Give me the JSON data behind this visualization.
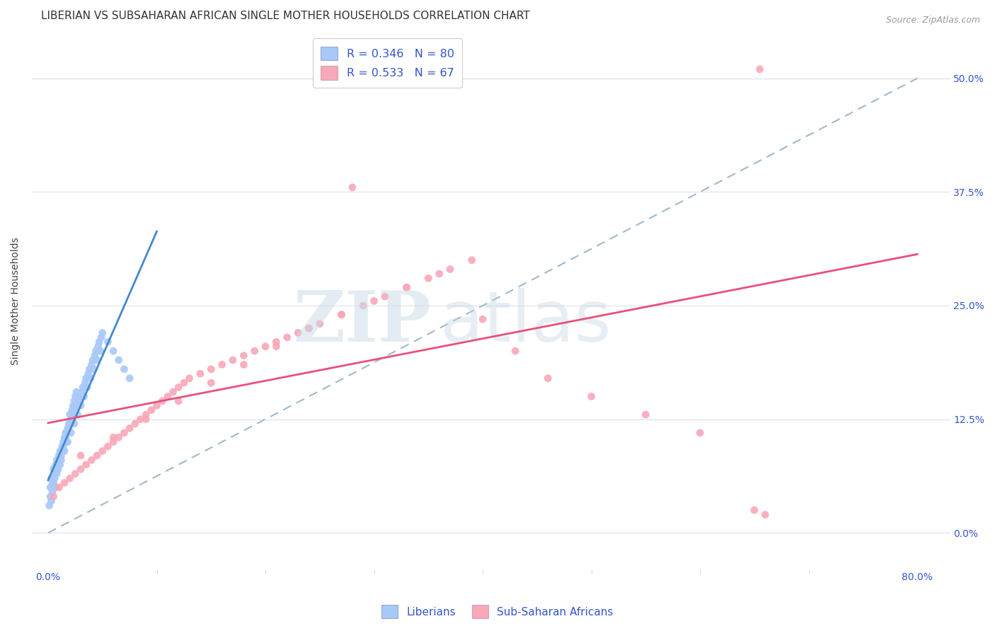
{
  "title": "LIBERIAN VS SUBSAHARAN AFRICAN SINGLE MOTHER HOUSEHOLDS CORRELATION CHART",
  "source": "Source: ZipAtlas.com",
  "ylabel": "Single Mother Households",
  "ytick_labels": [
    "0.0%",
    "12.5%",
    "25.0%",
    "37.5%",
    "50.0%"
  ],
  "ytick_values": [
    0.0,
    12.5,
    25.0,
    37.5,
    50.0
  ],
  "color_liberian": "#a8c8f8",
  "color_liberian_line": "#4488cc",
  "color_subsaharan": "#f8a8b8",
  "color_subsaharan_line": "#e8507a",
  "color_dashed": "#a0b8cc",
  "color_axis_labels": "#3355cc",
  "background_color": "#ffffff",
  "grid_color": "#e0e0ee",
  "title_fontsize": 11,
  "axis_label_fontsize": 10,
  "tick_label_color": "#3355cc",
  "tick_label_fontsize": 10,
  "lib_x": [
    0.2,
    0.3,
    0.4,
    0.5,
    0.6,
    0.7,
    0.8,
    0.9,
    1.0,
    1.1,
    1.2,
    1.3,
    1.4,
    1.5,
    1.6,
    1.7,
    1.8,
    1.9,
    2.0,
    2.1,
    2.2,
    2.3,
    2.4,
    2.5,
    2.6,
    2.7,
    2.8,
    2.9,
    3.0,
    3.1,
    3.2,
    3.3,
    3.4,
    3.5,
    3.6,
    3.7,
    3.8,
    3.9,
    4.0,
    4.1,
    4.2,
    4.3,
    4.4,
    4.5,
    4.6,
    4.7,
    4.8,
    4.9,
    5.0,
    5.5,
    6.0,
    6.5,
    7.0,
    7.5,
    0.1,
    0.2,
    0.3,
    0.4,
    0.5,
    0.6,
    0.7,
    0.8,
    0.9,
    1.0,
    1.1,
    1.2,
    1.3,
    1.4,
    1.5,
    1.6,
    1.7,
    1.8,
    1.9,
    2.0,
    2.1,
    2.2,
    2.3,
    2.4,
    2.5,
    2.6
  ],
  "lib_y": [
    5.0,
    6.0,
    5.5,
    7.0,
    6.5,
    7.5,
    8.0,
    7.0,
    8.5,
    9.0,
    8.0,
    9.5,
    10.0,
    9.0,
    10.5,
    11.0,
    10.0,
    11.5,
    12.0,
    11.0,
    12.5,
    13.0,
    12.0,
    13.5,
    14.0,
    13.0,
    14.5,
    15.0,
    14.0,
    15.5,
    16.0,
    15.0,
    16.5,
    17.0,
    16.0,
    17.5,
    18.0,
    17.0,
    18.5,
    19.0,
    18.0,
    19.5,
    20.0,
    19.0,
    20.5,
    21.0,
    20.0,
    21.5,
    22.0,
    21.0,
    20.0,
    19.0,
    18.0,
    17.0,
    3.0,
    4.0,
    3.5,
    4.5,
    5.5,
    6.0,
    5.0,
    6.5,
    7.0,
    8.0,
    7.5,
    8.5,
    9.0,
    9.5,
    10.5,
    11.0,
    10.0,
    11.5,
    12.0,
    13.0,
    12.5,
    13.5,
    14.0,
    14.5,
    15.0,
    15.5
  ],
  "ss_x": [
    0.5,
    1.0,
    1.5,
    2.0,
    2.5,
    3.0,
    3.5,
    4.0,
    4.5,
    5.0,
    5.5,
    6.0,
    6.5,
    7.0,
    7.5,
    8.0,
    8.5,
    9.0,
    9.5,
    10.0,
    10.5,
    11.0,
    11.5,
    12.0,
    12.5,
    13.0,
    14.0,
    15.0,
    16.0,
    17.0,
    18.0,
    19.0,
    20.0,
    21.0,
    22.0,
    23.0,
    24.0,
    25.0,
    27.0,
    29.0,
    31.0,
    33.0,
    35.0,
    37.0,
    40.0,
    43.0,
    46.0,
    50.0,
    55.0,
    60.0,
    65.0,
    66.0,
    3.0,
    6.0,
    9.0,
    12.0,
    15.0,
    18.0,
    21.0,
    24.0,
    27.0,
    30.0,
    33.0,
    36.0,
    39.0,
    28.0,
    65.5
  ],
  "ss_y": [
    4.0,
    5.0,
    5.5,
    6.0,
    6.5,
    7.0,
    7.5,
    8.0,
    8.5,
    9.0,
    9.5,
    10.0,
    10.5,
    11.0,
    11.5,
    12.0,
    12.5,
    13.0,
    13.5,
    14.0,
    14.5,
    15.0,
    15.5,
    16.0,
    16.5,
    17.0,
    17.5,
    18.0,
    18.5,
    19.0,
    19.5,
    20.0,
    20.5,
    21.0,
    21.5,
    22.0,
    22.5,
    23.0,
    24.0,
    25.0,
    26.0,
    27.0,
    28.0,
    29.0,
    23.5,
    20.0,
    17.0,
    15.0,
    13.0,
    11.0,
    2.5,
    2.0,
    8.5,
    10.5,
    12.5,
    14.5,
    16.5,
    18.5,
    20.5,
    22.5,
    24.0,
    25.5,
    27.0,
    28.5,
    30.0,
    38.0,
    51.0
  ]
}
